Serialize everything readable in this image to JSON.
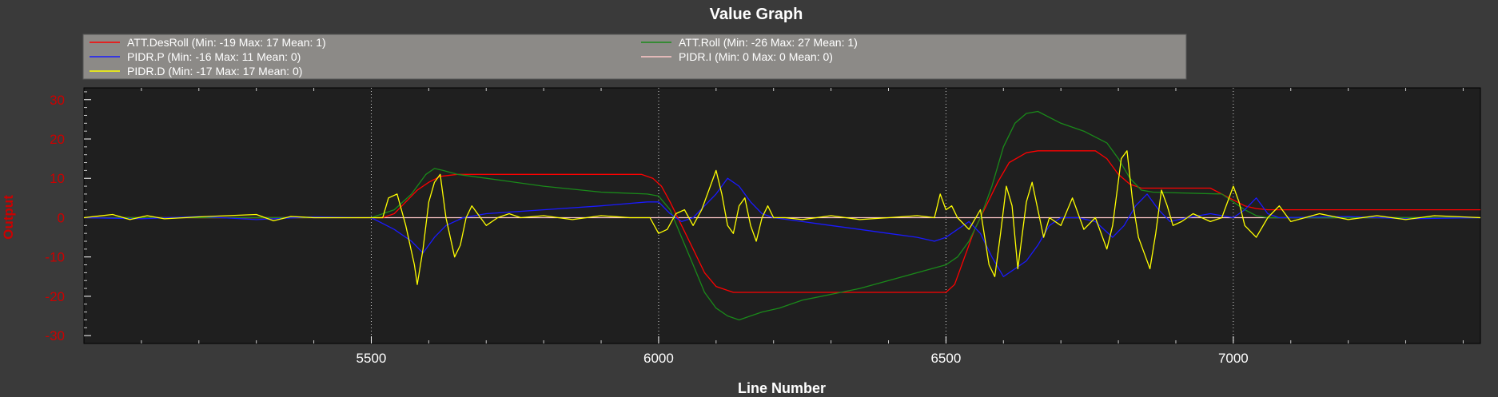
{
  "chart_data": {
    "type": "line",
    "title": "Value Graph",
    "xlabel": "Line Number",
    "ylabel": "Output",
    "xlim": [
      5000,
      7430
    ],
    "ylim": [
      -32,
      33
    ],
    "x_ticks": [
      5500,
      6000,
      6500,
      7000
    ],
    "y_ticks": [
      -30,
      -20,
      -10,
      0,
      10,
      20,
      30
    ],
    "grid": "vertical dotted at major x ticks",
    "legend_position": "top",
    "colors": {
      "background": "#3a3a3a",
      "plot_background": "#1f1f1f",
      "legend_background": "#8c8a87",
      "axis_label_color": "#cc0000",
      "tick_label_color": "#cc0000",
      "text_color": "#ffffff"
    },
    "series": [
      {
        "name": "ATT.DesRoll",
        "legend_label": "ATT.DesRoll (Min: -19 Max: 17 Mean: 1)",
        "color": "#ff0000",
        "points": [
          [
            5000,
            0
          ],
          [
            5520,
            0
          ],
          [
            5540,
            1
          ],
          [
            5560,
            4
          ],
          [
            5580,
            7
          ],
          [
            5600,
            9
          ],
          [
            5620,
            10.5
          ],
          [
            5650,
            11
          ],
          [
            5970,
            11
          ],
          [
            5990,
            10
          ],
          [
            6005,
            8
          ],
          [
            6020,
            4
          ],
          [
            6040,
            -2
          ],
          [
            6060,
            -8
          ],
          [
            6080,
            -14
          ],
          [
            6100,
            -17.5
          ],
          [
            6130,
            -19
          ],
          [
            6500,
            -19
          ],
          [
            6515,
            -17
          ],
          [
            6530,
            -11
          ],
          [
            6550,
            -3
          ],
          [
            6570,
            3
          ],
          [
            6590,
            9
          ],
          [
            6610,
            14
          ],
          [
            6640,
            16.5
          ],
          [
            6660,
            17
          ],
          [
            6760,
            17
          ],
          [
            6780,
            15
          ],
          [
            6800,
            11
          ],
          [
            6820,
            8.5
          ],
          [
            6840,
            7.5
          ],
          [
            6960,
            7.5
          ],
          [
            6980,
            6
          ],
          [
            7000,
            4.5
          ],
          [
            7020,
            3
          ],
          [
            7040,
            2.3
          ],
          [
            7060,
            2
          ],
          [
            7430,
            2
          ]
        ]
      },
      {
        "name": "ATT.Roll",
        "legend_label": "ATT.Roll (Min: -26 Max: 27 Mean: 1)",
        "color": "#1a8a1a",
        "points": [
          [
            5000,
            0
          ],
          [
            5500,
            0
          ],
          [
            5540,
            2
          ],
          [
            5570,
            6
          ],
          [
            5595,
            11
          ],
          [
            5610,
            12.5
          ],
          [
            5625,
            12
          ],
          [
            5650,
            11
          ],
          [
            5700,
            10
          ],
          [
            5800,
            8
          ],
          [
            5900,
            6.5
          ],
          [
            5980,
            6
          ],
          [
            6000,
            5.5
          ],
          [
            6020,
            2
          ],
          [
            6040,
            -5
          ],
          [
            6060,
            -12
          ],
          [
            6080,
            -19
          ],
          [
            6100,
            -23
          ],
          [
            6120,
            -25
          ],
          [
            6140,
            -26
          ],
          [
            6160,
            -25
          ],
          [
            6180,
            -24
          ],
          [
            6210,
            -23
          ],
          [
            6250,
            -21
          ],
          [
            6300,
            -19.5
          ],
          [
            6350,
            -18
          ],
          [
            6400,
            -16
          ],
          [
            6450,
            -14
          ],
          [
            6500,
            -12
          ],
          [
            6520,
            -10
          ],
          [
            6540,
            -6
          ],
          [
            6560,
            0
          ],
          [
            6580,
            8
          ],
          [
            6600,
            18
          ],
          [
            6620,
            24
          ],
          [
            6640,
            26.5
          ],
          [
            6660,
            27
          ],
          [
            6680,
            25.5
          ],
          [
            6700,
            24
          ],
          [
            6740,
            22
          ],
          [
            6780,
            19
          ],
          [
            6800,
            15
          ],
          [
            6820,
            10
          ],
          [
            6840,
            7
          ],
          [
            6860,
            6.5
          ],
          [
            6900,
            6.3
          ],
          [
            6980,
            6
          ],
          [
            7000,
            4
          ],
          [
            7020,
            2
          ],
          [
            7040,
            0.5
          ],
          [
            7060,
            0
          ],
          [
            7430,
            0
          ]
        ]
      },
      {
        "name": "PIDR.P",
        "legend_label": "PIDR.P (Min: -16 Max: 11 Mean: 0)",
        "color": "#1a1aff",
        "points": [
          [
            5000,
            0
          ],
          [
            5100,
            -0.3
          ],
          [
            5200,
            0.3
          ],
          [
            5300,
            -0.5
          ],
          [
            5400,
            0.2
          ],
          [
            5500,
            0
          ],
          [
            5540,
            -3
          ],
          [
            5570,
            -6
          ],
          [
            5590,
            -9
          ],
          [
            5610,
            -5
          ],
          [
            5630,
            -2
          ],
          [
            5660,
            0
          ],
          [
            5700,
            1
          ],
          [
            5800,
            2
          ],
          [
            5900,
            3
          ],
          [
            5980,
            4
          ],
          [
            6000,
            4
          ],
          [
            6020,
            1
          ],
          [
            6040,
            -1
          ],
          [
            6060,
            0
          ],
          [
            6080,
            3
          ],
          [
            6100,
            6
          ],
          [
            6120,
            10
          ],
          [
            6140,
            8
          ],
          [
            6160,
            4
          ],
          [
            6180,
            1
          ],
          [
            6200,
            0
          ],
          [
            6250,
            -1
          ],
          [
            6300,
            -2
          ],
          [
            6350,
            -3
          ],
          [
            6400,
            -4
          ],
          [
            6450,
            -5
          ],
          [
            6480,
            -6
          ],
          [
            6500,
            -5
          ],
          [
            6520,
            -3
          ],
          [
            6540,
            -1
          ],
          [
            6560,
            -4
          ],
          [
            6580,
            -10
          ],
          [
            6600,
            -15
          ],
          [
            6620,
            -13
          ],
          [
            6640,
            -11
          ],
          [
            6660,
            -7
          ],
          [
            6680,
            -2
          ],
          [
            6700,
            0
          ],
          [
            6730,
            0
          ],
          [
            6760,
            -1
          ],
          [
            6790,
            -5
          ],
          [
            6810,
            -2
          ],
          [
            6830,
            3
          ],
          [
            6850,
            6
          ],
          [
            6870,
            2
          ],
          [
            6890,
            -1
          ],
          [
            6920,
            0
          ],
          [
            6960,
            1
          ],
          [
            7000,
            0
          ],
          [
            7020,
            2
          ],
          [
            7040,
            5
          ],
          [
            7060,
            1
          ],
          [
            7080,
            0
          ],
          [
            7200,
            0.3
          ],
          [
            7300,
            -0.3
          ],
          [
            7430,
            0
          ]
        ]
      },
      {
        "name": "PIDR.I",
        "legend_label": "PIDR.I (Min: 0 Max: 0 Mean: 0)",
        "color": "#ffc8c8",
        "points": [
          [
            5000,
            0
          ],
          [
            7430,
            0
          ]
        ]
      },
      {
        "name": "PIDR.D",
        "legend_label": "PIDR.D (Min: -17 Max: 17 Mean: 0)",
        "color": "#ffff00",
        "points": [
          [
            5000,
            0
          ],
          [
            5050,
            0.8
          ],
          [
            5080,
            -0.5
          ],
          [
            5110,
            0.5
          ],
          [
            5140,
            -0.3
          ],
          [
            5200,
            0.2
          ],
          [
            5300,
            0.8
          ],
          [
            5330,
            -0.8
          ],
          [
            5360,
            0.3
          ],
          [
            5400,
            0
          ],
          [
            5500,
            0
          ],
          [
            5520,
            0
          ],
          [
            5530,
            5
          ],
          [
            5545,
            6
          ],
          [
            5560,
            -2
          ],
          [
            5575,
            -12
          ],
          [
            5580,
            -17
          ],
          [
            5590,
            -8
          ],
          [
            5600,
            4
          ],
          [
            5610,
            9
          ],
          [
            5620,
            11
          ],
          [
            5630,
            0
          ],
          [
            5645,
            -10
          ],
          [
            5655,
            -7
          ],
          [
            5665,
            0
          ],
          [
            5675,
            3
          ],
          [
            5690,
            0
          ],
          [
            5700,
            -2
          ],
          [
            5720,
            0
          ],
          [
            5740,
            1
          ],
          [
            5760,
            0
          ],
          [
            5800,
            0.5
          ],
          [
            5850,
            -0.5
          ],
          [
            5900,
            0.5
          ],
          [
            5950,
            0
          ],
          [
            5985,
            0
          ],
          [
            6000,
            -4
          ],
          [
            6015,
            -3
          ],
          [
            6030,
            1
          ],
          [
            6045,
            2
          ],
          [
            6060,
            -2
          ],
          [
            6075,
            2
          ],
          [
            6090,
            8
          ],
          [
            6100,
            12
          ],
          [
            6110,
            6
          ],
          [
            6120,
            -2
          ],
          [
            6130,
            -4
          ],
          [
            6140,
            3
          ],
          [
            6150,
            5
          ],
          [
            6160,
            -2
          ],
          [
            6170,
            -6
          ],
          [
            6180,
            0
          ],
          [
            6190,
            3
          ],
          [
            6200,
            0
          ],
          [
            6220,
            0
          ],
          [
            6250,
            -0.5
          ],
          [
            6300,
            0.5
          ],
          [
            6350,
            -0.5
          ],
          [
            6400,
            0
          ],
          [
            6450,
            0.5
          ],
          [
            6480,
            0
          ],
          [
            6490,
            6
          ],
          [
            6500,
            2
          ],
          [
            6510,
            3
          ],
          [
            6520,
            0
          ],
          [
            6540,
            -3
          ],
          [
            6560,
            2
          ],
          [
            6575,
            -12
          ],
          [
            6585,
            -15
          ],
          [
            6595,
            -4
          ],
          [
            6605,
            8
          ],
          [
            6615,
            3
          ],
          [
            6625,
            -13
          ],
          [
            6640,
            4
          ],
          [
            6650,
            9
          ],
          [
            6660,
            2
          ],
          [
            6670,
            -5
          ],
          [
            6680,
            0
          ],
          [
            6700,
            -2
          ],
          [
            6720,
            5
          ],
          [
            6740,
            -3
          ],
          [
            6760,
            0
          ],
          [
            6780,
            -8
          ],
          [
            6790,
            -2
          ],
          [
            6805,
            15
          ],
          [
            6815,
            17
          ],
          [
            6825,
            4
          ],
          [
            6835,
            -5
          ],
          [
            6845,
            -9
          ],
          [
            6855,
            -13
          ],
          [
            6865,
            -4
          ],
          [
            6875,
            7
          ],
          [
            6885,
            3
          ],
          [
            6895,
            -2
          ],
          [
            6910,
            -1
          ],
          [
            6930,
            1
          ],
          [
            6960,
            -1
          ],
          [
            6980,
            0
          ],
          [
            7000,
            8
          ],
          [
            7010,
            4
          ],
          [
            7020,
            -2
          ],
          [
            7040,
            -5
          ],
          [
            7060,
            0
          ],
          [
            7080,
            3
          ],
          [
            7100,
            -1
          ],
          [
            7150,
            1
          ],
          [
            7200,
            -0.5
          ],
          [
            7250,
            0.5
          ],
          [
            7300,
            -0.5
          ],
          [
            7350,
            0.5
          ],
          [
            7430,
            0
          ]
        ]
      }
    ]
  }
}
